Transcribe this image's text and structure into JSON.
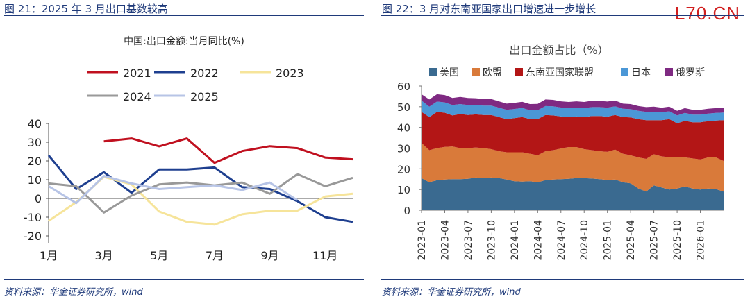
{
  "watermark": "L70.CN",
  "chart_data": [
    {
      "type": "line",
      "figure_title": "图 21：2025 年 3 月出口基数较高",
      "title": "中国:出口金额:当月同比(%)",
      "source": "资料来源：华金证券研究所，wind",
      "categories": [
        "1月",
        "2月",
        "3月",
        "4月",
        "5月",
        "6月",
        "7月",
        "8月",
        "9月",
        "10月",
        "11月",
        "12月"
      ],
      "x_tick_labels": [
        "1月",
        "3月",
        "5月",
        "7月",
        "9月",
        "11月"
      ],
      "ylim": [
        -20,
        40
      ],
      "yticks": [
        -20,
        -10,
        0,
        10,
        20,
        30,
        40
      ],
      "series": [
        {
          "name": "2021",
          "color": "#c0101f",
          "values": [
            null,
            null,
            30.5,
            32.0,
            27.8,
            32.0,
            19.0,
            25.3,
            27.9,
            26.8,
            21.8,
            20.9
          ]
        },
        {
          "name": "2022",
          "color": "#1e3f8f",
          "values": [
            23.0,
            5.0,
            14.0,
            3.0,
            15.5,
            15.5,
            16.5,
            6.0,
            5.0,
            -1.5,
            -10.0,
            -12.5
          ]
        },
        {
          "name": "2023",
          "color": "#f6e49a",
          "values": [
            -12.0,
            -2.0,
            11.5,
            7.5,
            -7.0,
            -12.5,
            -14.0,
            -8.5,
            -6.5,
            -6.5,
            1.0,
            2.5
          ]
        },
        {
          "name": "2024",
          "color": "#999999",
          "values": [
            8.0,
            6.5,
            -7.5,
            1.5,
            7.5,
            8.5,
            7.0,
            8.5,
            2.5,
            13.0,
            6.5,
            11.0
          ]
        },
        {
          "name": "2025",
          "color": "#b7c4e6",
          "values": [
            6.5,
            -2.5,
            12.0,
            8.0,
            5.0,
            6.0,
            7.0,
            4.5,
            8.5,
            -1.0,
            null,
            null
          ]
        }
      ]
    },
    {
      "type": "area",
      "stacked": true,
      "figure_title": "图 22：3 月对东南亚国家出口增速进一步增长",
      "title": "出口金额占比（%）",
      "source": "资料来源：华金证券研究所，wind",
      "ylim": [
        0,
        60
      ],
      "yticks": [
        0,
        10,
        20,
        30,
        40,
        50,
        60
      ],
      "x_tick_labels": [
        "2023-01",
        "2023-04",
        "2023-07",
        "2023-10",
        "2024-01",
        "2024-04",
        "2024-07",
        "2024-10",
        "2025-01",
        "2025-04",
        "2025-07",
        "2025-10",
        "2026-01"
      ],
      "series": [
        {
          "name": "美国",
          "color": "#3a6a90",
          "values": [
            15.5,
            13.5,
            14.5,
            14.8,
            15.0,
            15.0,
            15.2,
            15.8,
            15.6,
            15.8,
            15.5,
            14.8,
            14.0,
            13.8,
            14.0,
            13.5,
            14.5,
            14.8,
            15.0,
            15.2,
            15.5,
            15.5,
            15.3,
            15.0,
            14.6,
            14.8,
            13.5,
            13.0,
            10.5,
            9.0,
            12.0,
            11.0,
            10.0,
            10.5,
            11.5,
            10.5,
            10.0,
            10.5,
            10.2,
            9.0
          ]
        },
        {
          "name": "欧盟",
          "color": "#d97a3a",
          "values": [
            17.0,
            15.5,
            15.5,
            15.8,
            15.8,
            15.0,
            14.8,
            14.5,
            14.4,
            13.7,
            13.0,
            13.2,
            14.0,
            14.2,
            13.3,
            13.0,
            14.0,
            14.2,
            14.8,
            15.3,
            15.0,
            14.0,
            13.7,
            13.5,
            13.6,
            14.5,
            13.8,
            13.5,
            15.0,
            15.8,
            15.0,
            15.0,
            15.5,
            15.0,
            14.0,
            14.5,
            14.5,
            15.0,
            15.3,
            14.8
          ]
        },
        {
          "name": "东南亚国家联盟",
          "color": "#b31616",
          "values": [
            15.0,
            16.0,
            17.5,
            16.5,
            15.0,
            16.5,
            16.0,
            16.0,
            16.0,
            16.5,
            16.5,
            16.0,
            16.5,
            17.0,
            16.7,
            17.5,
            17.5,
            16.8,
            15.5,
            14.5,
            14.8,
            15.5,
            16.5,
            17.0,
            17.0,
            16.7,
            17.7,
            18.3,
            18.5,
            18.7,
            16.5,
            17.5,
            18.5,
            16.5,
            17.7,
            17.5,
            18.0,
            17.5,
            17.8,
            19.7
          ]
        },
        {
          "name": "日本",
          "color": "#4b97d6",
          "values": [
            5.5,
            5.0,
            5.0,
            5.0,
            5.0,
            4.8,
            4.8,
            4.5,
            4.5,
            4.5,
            4.5,
            4.5,
            4.4,
            4.4,
            4.3,
            4.3,
            4.3,
            4.4,
            4.3,
            4.3,
            4.3,
            4.3,
            4.3,
            4.3,
            4.3,
            4.2,
            4.0,
            4.0,
            4.0,
            4.0,
            4.0,
            3.8,
            3.8,
            3.8,
            3.8,
            3.7,
            3.7,
            3.7,
            3.7,
            3.7
          ]
        },
        {
          "name": "俄罗斯",
          "color": "#7f2a82",
          "values": [
            3.0,
            3.5,
            3.5,
            3.5,
            3.4,
            3.4,
            3.4,
            3.3,
            3.2,
            3.2,
            3.1,
            3.0,
            3.0,
            3.0,
            3.0,
            3.1,
            3.2,
            3.1,
            3.0,
            3.0,
            3.0,
            3.0,
            3.1,
            3.0,
            3.0,
            2.8,
            2.5,
            2.5,
            2.3,
            2.3,
            2.5,
            2.2,
            2.2,
            2.2,
            2.3,
            2.3,
            2.3,
            2.3,
            2.3,
            2.3
          ]
        }
      ]
    }
  ]
}
